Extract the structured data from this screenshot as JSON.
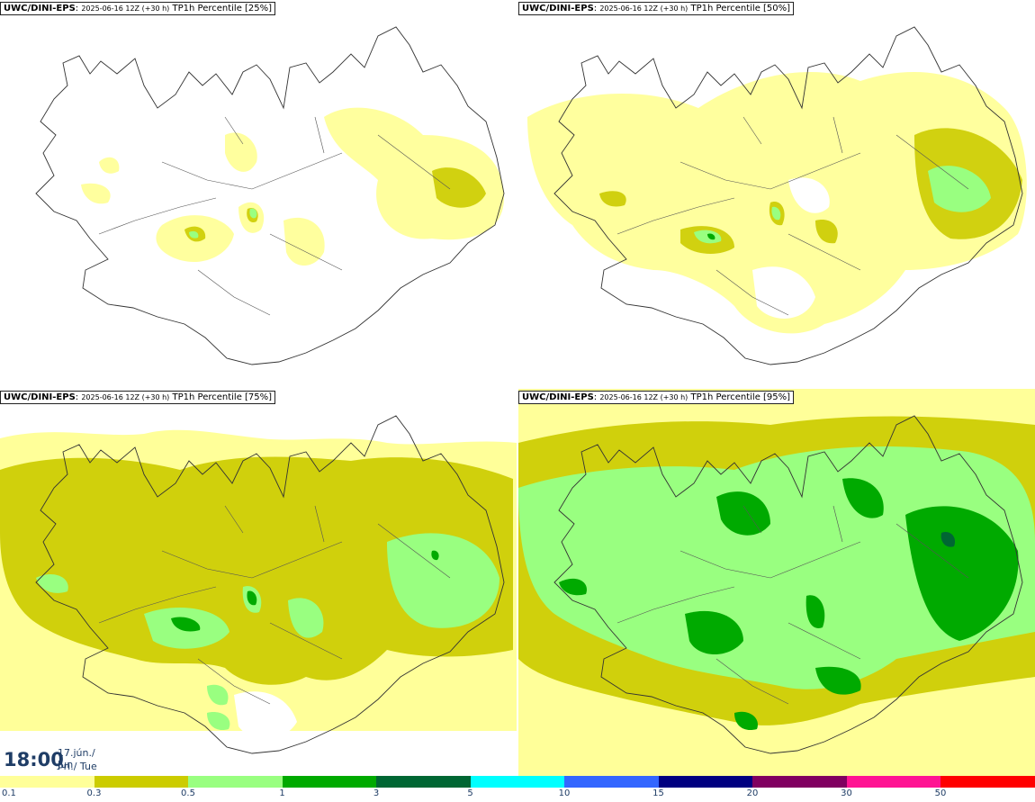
{
  "panels": [
    {
      "model": "UWC/DINI-EPS",
      "run": "2025-06-16 12Z (+30 h)",
      "field": "TP1h Percentile [25%]"
    },
    {
      "model": "UWC/DINI-EPS",
      "run": "2025-06-16 12Z (+30 h)",
      "field": "TP1h Percentile [50%]"
    },
    {
      "model": "UWC/DINI-EPS",
      "run": "2025-06-16 12Z (+30 h)",
      "field": "TP1h Percentile [75%]"
    },
    {
      "model": "UWC/DINI-EPS",
      "run": "2025-06-16 12Z (+30 h)",
      "field": "TP1h Percentile [95%]"
    }
  ],
  "valid_time": {
    "hour": "18:00",
    "date": "17.jún./ Jun",
    "weekday": "Þri./ Tue"
  },
  "legend": {
    "labels": [
      "0.1",
      "0.3",
      "0.5",
      "1",
      "3",
      "5",
      "10",
      "15",
      "20",
      "30",
      "50"
    ],
    "colors": [
      "#ffff99",
      "#cccc00",
      "#99ff80",
      "#00aa00",
      "#006633",
      "#00ffff",
      "#3366ff",
      "#000080",
      "#800060",
      "#ff1493",
      "#ff0000"
    ]
  }
}
